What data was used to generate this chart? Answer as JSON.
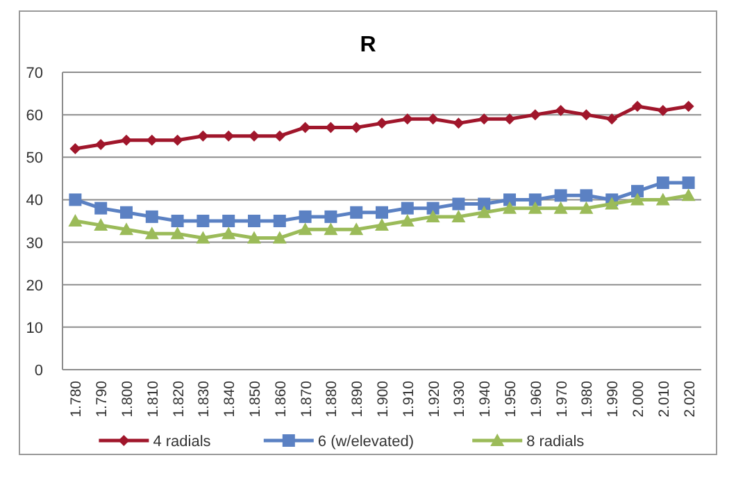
{
  "chart_data": {
    "type": "line",
    "title": "R",
    "categories": [
      "1.780",
      "1.790",
      "1.800",
      "1.810",
      "1.820",
      "1.830",
      "1.840",
      "1.850",
      "1.860",
      "1.870",
      "1.880",
      "1.890",
      "1.900",
      "1.910",
      "1.920",
      "1.930",
      "1.940",
      "1.950",
      "1.960",
      "1.970",
      "1.980",
      "1.990",
      "2.000",
      "2.010",
      "2.020"
    ],
    "series": [
      {
        "name": "4 radials",
        "color": "#a0162b",
        "marker": "diamond",
        "values": [
          52,
          53,
          54,
          54,
          54,
          55,
          55,
          55,
          55,
          57,
          57,
          57,
          58,
          59,
          59,
          58,
          59,
          59,
          60,
          61,
          60,
          59,
          62,
          61,
          62
        ]
      },
      {
        "name": "6 (w/elevated)",
        "color": "#5b81c3",
        "marker": "square",
        "values": [
          40,
          38,
          37,
          36,
          35,
          35,
          35,
          35,
          35,
          36,
          36,
          37,
          37,
          38,
          38,
          39,
          39,
          40,
          40,
          41,
          41,
          40,
          42,
          44,
          44
        ]
      },
      {
        "name": "8 radials",
        "color": "#9bbb59",
        "marker": "triangle",
        "values": [
          35,
          34,
          33,
          32,
          32,
          31,
          32,
          31,
          31,
          33,
          33,
          33,
          34,
          35,
          36,
          36,
          37,
          38,
          38,
          38,
          38,
          39,
          40,
          40,
          41
        ]
      }
    ],
    "ylim": [
      0,
      70
    ],
    "yticks": [
      0,
      10,
      20,
      30,
      40,
      50,
      60,
      70
    ],
    "grid": "y",
    "legend": "bottom"
  }
}
